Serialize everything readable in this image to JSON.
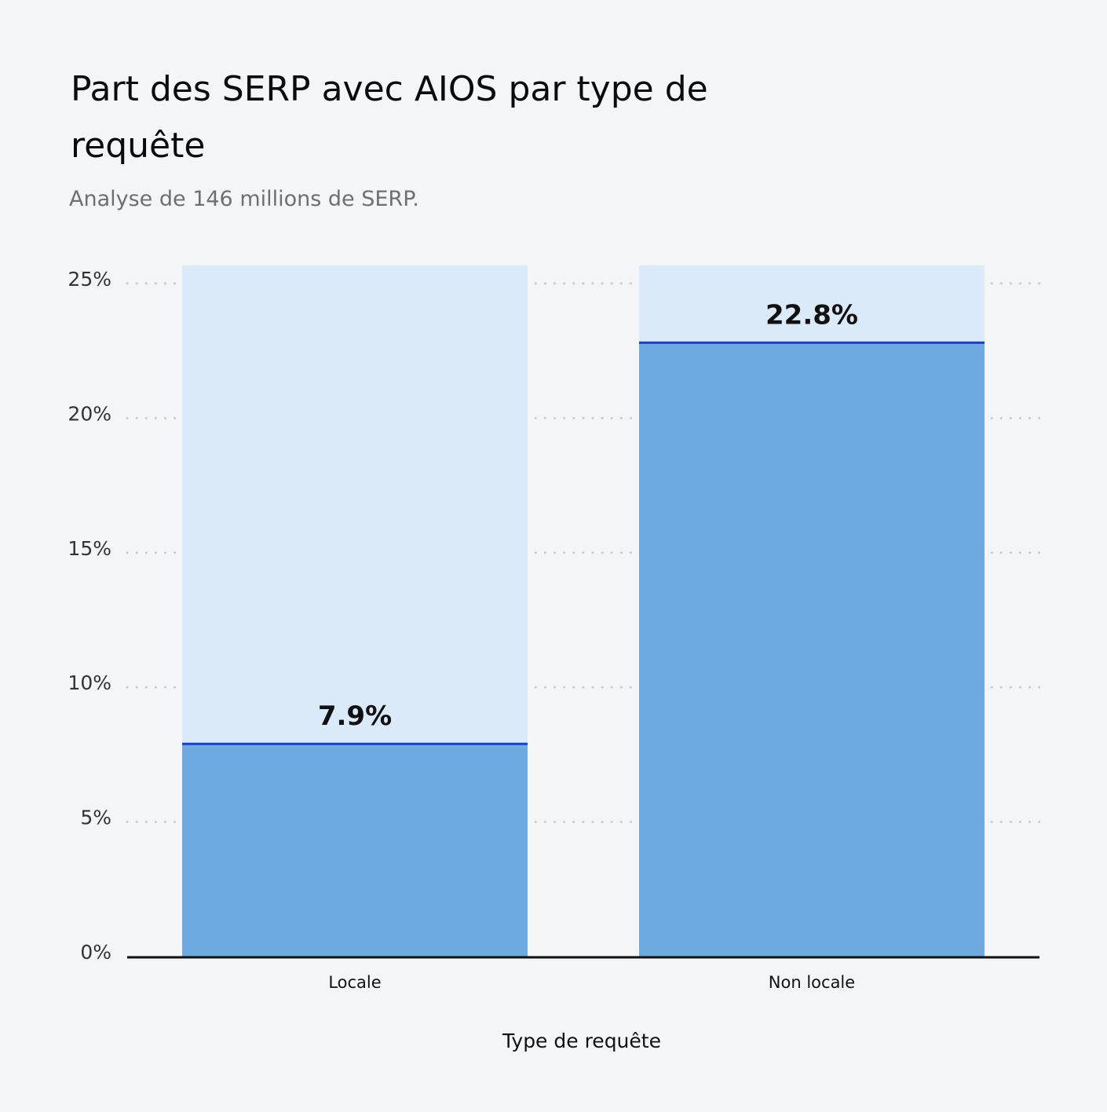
{
  "header": {
    "title": "Part des SERP avec AIOS par type de requête",
    "subtitle": "Analyse de 146 millions de SERP."
  },
  "colors": {
    "background": "#f4f5f7",
    "bar_fill": "#6caae0",
    "bar_track": "#daeaf9",
    "bar_top_line": "#1b3fd1",
    "grid": "#c8cbd0",
    "axis": "#111111"
  },
  "chart_data": {
    "type": "bar",
    "title": "Part des SERP avec AIOS par type de requête",
    "subtitle": "Analyse de 146 millions de SERP.",
    "categories": [
      "Locale",
      "Non locale"
    ],
    "values": [
      7.9,
      22.8
    ],
    "value_labels": [
      "7.9%",
      "22.8%"
    ],
    "xlabel": "Type de requête",
    "ylabel": "",
    "ylim": [
      0,
      25
    ],
    "yticks": [
      0,
      5,
      10,
      15,
      20,
      25
    ],
    "ytick_labels": [
      "0%",
      "5%",
      "10%",
      "15%",
      "20%",
      "25%"
    ],
    "grid": "horizontal dotted",
    "legend": "none"
  }
}
